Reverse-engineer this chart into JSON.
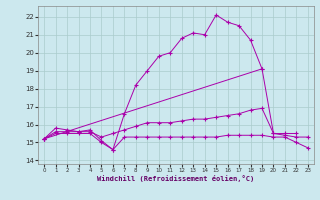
{
  "xlabel": "Windchill (Refroidissement éolien,°C)",
  "bg_color": "#cce8ee",
  "grid_color": "#aacccc",
  "line_color": "#aa00aa",
  "xlim": [
    -0.5,
    23.5
  ],
  "ylim": [
    13.8,
    22.6
  ],
  "xticks": [
    0,
    1,
    2,
    3,
    4,
    5,
    6,
    7,
    8,
    9,
    10,
    11,
    12,
    13,
    14,
    15,
    16,
    17,
    18,
    19,
    20,
    21,
    22,
    23
  ],
  "yticks": [
    14,
    15,
    16,
    17,
    18,
    19,
    20,
    21,
    22
  ],
  "series": [
    {
      "x": [
        0,
        1,
        2,
        3,
        4,
        5,
        6,
        7,
        8,
        9,
        10,
        11,
        12,
        13,
        14,
        15,
        16,
        17,
        18,
        19,
        20,
        21,
        22
      ],
      "y": [
        15.2,
        15.8,
        15.7,
        15.6,
        15.7,
        15.1,
        14.6,
        16.6,
        18.2,
        19.0,
        19.8,
        20.0,
        20.8,
        21.1,
        21.0,
        22.1,
        21.7,
        21.5,
        20.7,
        19.1,
        15.5,
        15.5,
        15.5
      ]
    },
    {
      "x": [
        0,
        19
      ],
      "y": [
        15.2,
        19.1
      ]
    },
    {
      "x": [
        0,
        1,
        2,
        3,
        4,
        5,
        6,
        7,
        8,
        9,
        10,
        11,
        12,
        13,
        14,
        15,
        16,
        17,
        18,
        19,
        20,
        21,
        22,
        23
      ],
      "y": [
        15.2,
        15.6,
        15.6,
        15.6,
        15.6,
        15.3,
        15.5,
        15.7,
        15.9,
        16.1,
        16.1,
        16.1,
        16.2,
        16.3,
        16.3,
        16.4,
        16.5,
        16.6,
        16.8,
        16.9,
        15.5,
        15.4,
        15.3,
        15.3
      ]
    },
    {
      "x": [
        0,
        1,
        2,
        3,
        4,
        5,
        6,
        7,
        8,
        9,
        10,
        11,
        12,
        13,
        14,
        15,
        16,
        17,
        18,
        19,
        20,
        21,
        22,
        23
      ],
      "y": [
        15.2,
        15.5,
        15.5,
        15.5,
        15.5,
        15.0,
        14.6,
        15.3,
        15.3,
        15.3,
        15.3,
        15.3,
        15.3,
        15.3,
        15.3,
        15.3,
        15.4,
        15.4,
        15.4,
        15.4,
        15.3,
        15.3,
        15.0,
        14.7
      ]
    }
  ]
}
